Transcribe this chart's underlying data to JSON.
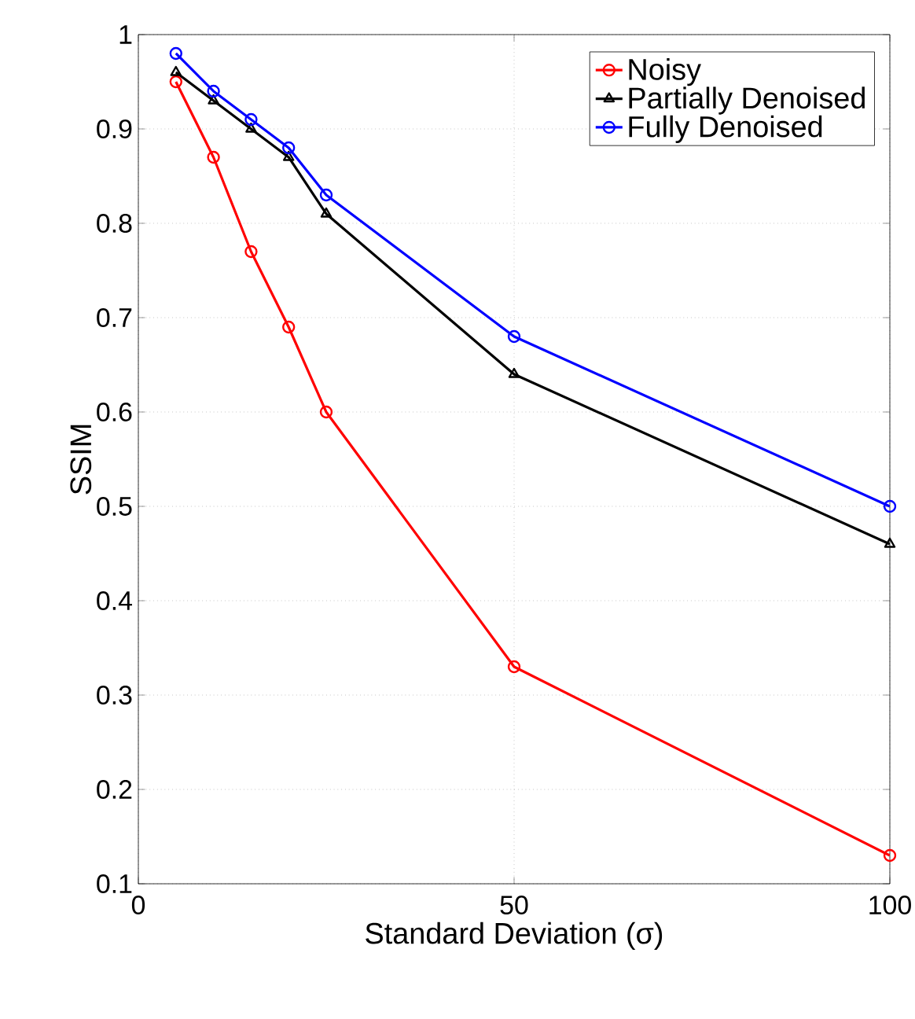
{
  "chart_data": {
    "type": "line",
    "xlabel": "Standard Deviation (σ)",
    "ylabel": "SSIM",
    "x": [
      5,
      10,
      15,
      20,
      25,
      50,
      100
    ],
    "series": [
      {
        "name": "Noisy",
        "color": "#ff0000",
        "marker": "circle",
        "values": [
          0.95,
          0.87,
          0.77,
          0.69,
          0.6,
          0.33,
          0.13
        ]
      },
      {
        "name": "Partially Denoised",
        "color": "#000000",
        "marker": "triangle",
        "values": [
          0.96,
          0.93,
          0.9,
          0.87,
          0.81,
          0.64,
          0.46
        ]
      },
      {
        "name": "Fully Denoised",
        "color": "#0000ff",
        "marker": "circle",
        "values": [
          0.98,
          0.94,
          0.91,
          0.88,
          0.83,
          0.68,
          0.5
        ]
      }
    ],
    "xlim": [
      0,
      100
    ],
    "xticks": [
      0,
      50,
      100
    ],
    "ylim": [
      0.1,
      1
    ],
    "yticks": [
      0.1,
      0.2,
      0.3,
      0.4,
      0.5,
      0.6,
      0.7,
      0.8,
      0.9,
      1
    ],
    "grid": true,
    "legend": "top right",
    "line_style": "solid"
  }
}
